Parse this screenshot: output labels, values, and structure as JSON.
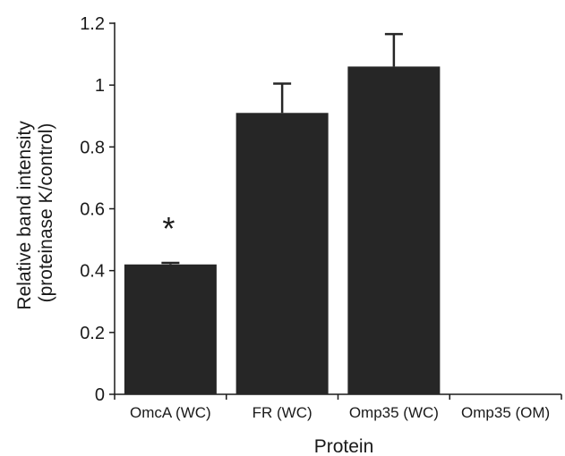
{
  "chart_data": {
    "type": "bar",
    "title": "",
    "xlabel": "Protein",
    "ylabel_lines": [
      "Relative band intensity",
      "(proteinase K/control)"
    ],
    "categories": [
      "OmcA (WC)",
      "FR (WC)",
      "Omp35 (WC)",
      "Omp35 (OM)"
    ],
    "values": [
      0.42,
      0.91,
      1.06,
      0.0
    ],
    "error_upper": [
      0.005,
      0.095,
      0.105,
      0.0
    ],
    "annotations": [
      {
        "category": "OmcA (WC)",
        "text": "*"
      }
    ],
    "ylim": [
      0,
      1.2
    ],
    "yticks": [
      0,
      0.2,
      0.4,
      0.6,
      0.8,
      1,
      1.2
    ],
    "ytick_labels": [
      "0",
      "0.2",
      "0.4",
      "0.6",
      "0.8",
      "1",
      "1.2"
    ],
    "grid": false,
    "legend": "none",
    "colors": {
      "bar": "#262626",
      "axis": "#1a1a1a",
      "background": "#ffffff"
    }
  }
}
